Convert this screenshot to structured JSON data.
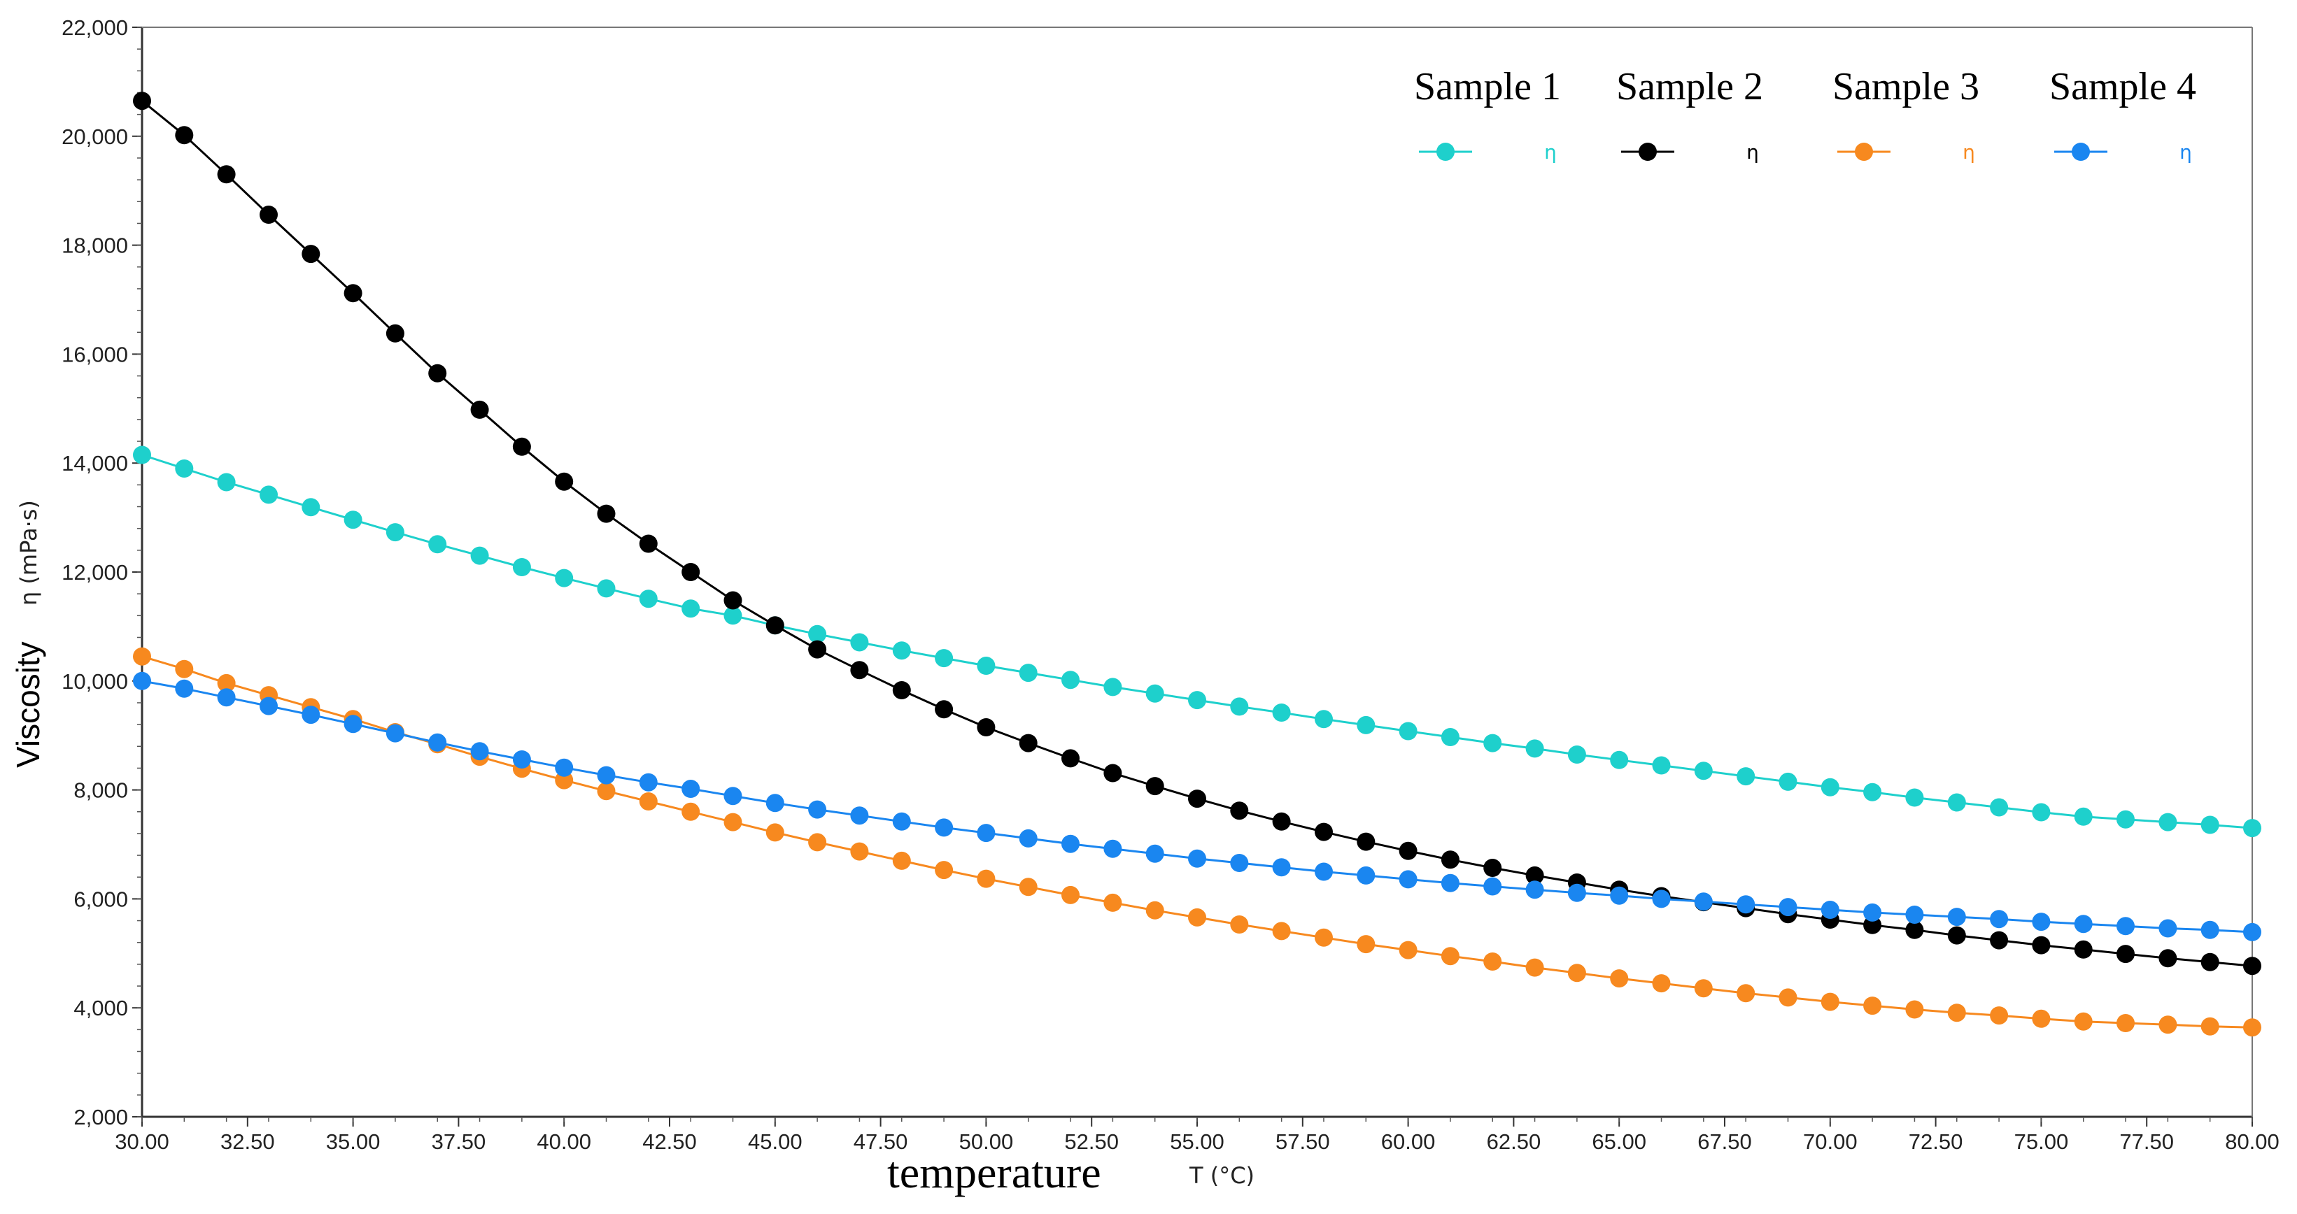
{
  "chart_data": {
    "type": "line",
    "title": "",
    "xlabel": "temperature",
    "xlabel_unit": "T (°C)",
    "ylabel": "Viscosity",
    "ylabel_unit": "η (mPa·s)",
    "xlim": [
      30,
      80
    ],
    "ylim": [
      2000,
      22000
    ],
    "x_ticks": [
      "30.00",
      "32.50",
      "35.00",
      "37.50",
      "40.00",
      "42.50",
      "45.00",
      "47.50",
      "50.00",
      "52.50",
      "55.00",
      "57.50",
      "60.00",
      "62.50",
      "65.00",
      "67.50",
      "70.00",
      "72.50",
      "75.00",
      "77.50",
      "80.00"
    ],
    "y_ticks": [
      "2,000",
      "4,000",
      "6,000",
      "8,000",
      "10,000",
      "12,000",
      "14,000",
      "16,000",
      "18,000",
      "20,000",
      "22,000"
    ],
    "grid": false,
    "legend_position": "top-right",
    "x": [
      30,
      31,
      32,
      33,
      34,
      35,
      36,
      37,
      38,
      39,
      40,
      41,
      42,
      43,
      44,
      45,
      46,
      47,
      48,
      49,
      50,
      51,
      52,
      53,
      54,
      55,
      56,
      57,
      58,
      59,
      60,
      61,
      62,
      63,
      64,
      65,
      66,
      67,
      68,
      69,
      70,
      71,
      72,
      73,
      74,
      75,
      76,
      77,
      78,
      79,
      80
    ],
    "series": [
      {
        "name": "Sample 1",
        "legend_symbol": "η",
        "color": "#1ed0cc",
        "values": [
          14150,
          13900,
          13650,
          13420,
          13190,
          12960,
          12730,
          12510,
          12300,
          12090,
          11890,
          11700,
          11510,
          11330,
          11200,
          11020,
          10860,
          10710,
          10560,
          10420,
          10280,
          10150,
          10020,
          9890,
          9770,
          9650,
          9530,
          9420,
          9300,
          9190,
          9080,
          8970,
          8860,
          8760,
          8650,
          8550,
          8450,
          8350,
          8250,
          8150,
          8050,
          7960,
          7860,
          7770,
          7680,
          7590,
          7510,
          7460,
          7410,
          7360,
          7300
        ]
      },
      {
        "name": "Sample 2",
        "legend_symbol": "η",
        "color": "#000000",
        "values": [
          20650,
          20020,
          19300,
          18560,
          17840,
          17120,
          16380,
          15650,
          14980,
          14300,
          13660,
          13070,
          12520,
          12000,
          11480,
          11020,
          10580,
          10200,
          9830,
          9480,
          9150,
          8860,
          8580,
          8310,
          8070,
          7840,
          7620,
          7420,
          7230,
          7050,
          6880,
          6720,
          6570,
          6430,
          6300,
          6170,
          6050,
          5940,
          5830,
          5720,
          5620,
          5520,
          5430,
          5330,
          5240,
          5150,
          5070,
          4990,
          4910,
          4840,
          4770
        ]
      },
      {
        "name": "Sample 3",
        "legend_symbol": "η",
        "color": "#f7891f",
        "values": [
          10450,
          10220,
          9960,
          9740,
          9520,
          9300,
          9060,
          8840,
          8610,
          8390,
          8180,
          7980,
          7790,
          7600,
          7410,
          7220,
          7040,
          6870,
          6700,
          6530,
          6370,
          6220,
          6070,
          5930,
          5790,
          5660,
          5530,
          5410,
          5290,
          5170,
          5060,
          4950,
          4850,
          4740,
          4640,
          4540,
          4450,
          4360,
          4270,
          4190,
          4110,
          4040,
          3970,
          3910,
          3860,
          3800,
          3750,
          3720,
          3690,
          3660,
          3640
        ]
      },
      {
        "name": "Sample 4",
        "legend_symbol": "η",
        "color": "#1a86f0",
        "values": [
          10000,
          9860,
          9700,
          9540,
          9380,
          9210,
          9040,
          8870,
          8710,
          8560,
          8410,
          8270,
          8140,
          8020,
          7890,
          7760,
          7640,
          7530,
          7420,
          7310,
          7210,
          7110,
          7010,
          6920,
          6830,
          6740,
          6660,
          6580,
          6500,
          6430,
          6360,
          6290,
          6230,
          6170,
          6110,
          6060,
          6000,
          5950,
          5900,
          5850,
          5800,
          5750,
          5710,
          5670,
          5630,
          5580,
          5540,
          5500,
          5460,
          5430,
          5390
        ]
      }
    ]
  }
}
